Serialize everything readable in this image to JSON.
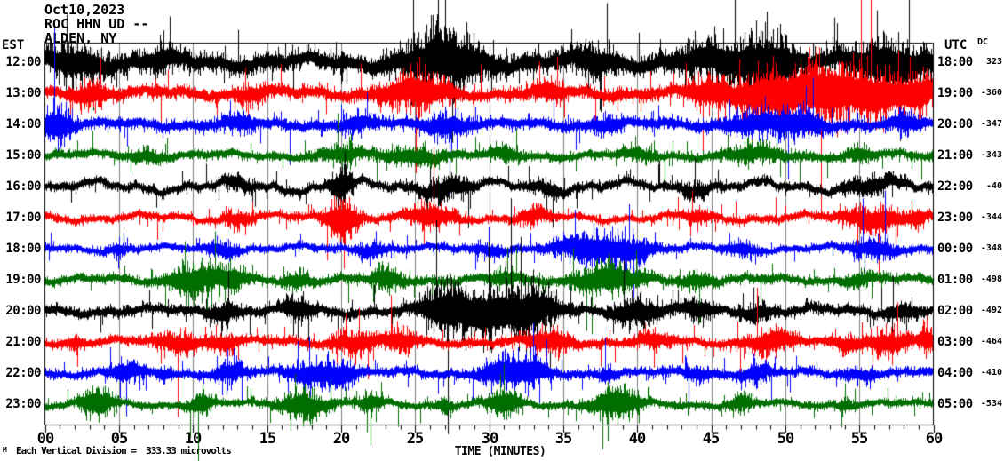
{
  "header": {
    "date": "Oct10,2023",
    "station": "ROC HHN UD --",
    "location": "ALDEN, NY"
  },
  "misc": {
    "watermark": "M"
  },
  "colors": {
    "background": "#ffffff",
    "text": "#000000",
    "grid": "#7f7f7f",
    "border": "#000000",
    "trace_black": "#000000",
    "trace_red": "#ff0000",
    "trace_blue": "#0000ff",
    "trace_green": "#006e00"
  },
  "chart_data": {
    "type": "line",
    "subtype": "helicorder-seismogram",
    "title": "Oct10,2023 ROC HHN UD --",
    "left_axis_label": "EST",
    "right_axis_label": "UTC",
    "dc_column_label": "DC",
    "x_axis_title": "TIME (MINUTES)",
    "x_ticks": [
      "00",
      "05",
      "10",
      "15",
      "20",
      "25",
      "30",
      "35",
      "40",
      "45",
      "50",
      "55",
      "60"
    ],
    "x_range_minutes": [
      0,
      60
    ],
    "major_tick_minutes": 5,
    "minor_tick_minutes": 1,
    "grid": true,
    "scale_note": "Each Vertical Division =  333.33 microvolts",
    "vertical_division_microvolts": 333.33,
    "rows": [
      {
        "est": "12:00",
        "utc": "18:00",
        "dc": "323",
        "color": "#000000",
        "base_amp": 16,
        "wander": 7,
        "bursts": [
          [
            2,
            2,
            20
          ],
          [
            8,
            1,
            12
          ],
          [
            27,
            2.5,
            45
          ],
          [
            37,
            1.5,
            18
          ],
          [
            46,
            3,
            25
          ],
          [
            49,
            1.5,
            40
          ],
          [
            57,
            2.5,
            35
          ]
        ]
      },
      {
        "est": "13:00",
        "utc": "19:00",
        "dc": "-360",
        "color": "#ff0000",
        "base_amp": 11,
        "wander": 5,
        "bursts": [
          [
            3,
            1,
            15
          ],
          [
            14,
            1,
            10
          ],
          [
            25,
            2,
            28
          ],
          [
            34,
            1,
            14
          ],
          [
            45,
            1.5,
            22
          ],
          [
            49,
            2,
            40
          ],
          [
            52.5,
            2,
            45
          ],
          [
            56,
            2,
            40
          ],
          [
            59,
            1,
            28
          ]
        ]
      },
      {
        "est": "14:00",
        "utc": "20:00",
        "dc": "-347",
        "color": "#0000ff",
        "base_amp": 10,
        "wander": 4,
        "bursts": [
          [
            0.7,
            1,
            28
          ],
          [
            13,
            1,
            10
          ],
          [
            21,
            1,
            10
          ],
          [
            27,
            1.5,
            16
          ],
          [
            38,
            1,
            10
          ],
          [
            48,
            2,
            16
          ],
          [
            51,
            1.5,
            18
          ],
          [
            58,
            1,
            12
          ]
        ]
      },
      {
        "est": "15:00",
        "utc": "21:00",
        "dc": "-343",
        "color": "#006e00",
        "base_amp": 8,
        "wander": 4,
        "bursts": [
          [
            7,
            1,
            8
          ],
          [
            20,
            1.5,
            10
          ],
          [
            25,
            2,
            12
          ],
          [
            31,
            1,
            10
          ],
          [
            40,
            1,
            8
          ],
          [
            48,
            2,
            12
          ],
          [
            55,
            1,
            8
          ]
        ]
      },
      {
        "est": "16:00",
        "utc": "22:00",
        "dc": "-40",
        "color": "#000000",
        "base_amp": 8,
        "wander": 8,
        "bursts": [
          [
            13,
            1,
            10
          ],
          [
            20,
            0.7,
            30
          ],
          [
            27,
            1.5,
            18
          ],
          [
            34,
            1,
            10
          ],
          [
            44,
            1,
            10
          ],
          [
            56,
            2,
            12
          ]
        ]
      },
      {
        "est": "17:00",
        "utc": "23:00",
        "dc": "-344",
        "color": "#ff0000",
        "base_amp": 7,
        "wander": 5,
        "bursts": [
          [
            13,
            1,
            10
          ],
          [
            20,
            1,
            35
          ],
          [
            26,
            1.5,
            18
          ],
          [
            33,
            1,
            12
          ],
          [
            44,
            1,
            8
          ],
          [
            56,
            2,
            20
          ],
          [
            59,
            0.5,
            12
          ]
        ]
      },
      {
        "est": "18:00",
        "utc": "00:00",
        "dc": "-348",
        "color": "#0000ff",
        "base_amp": 7,
        "wander": 4,
        "bursts": [
          [
            5,
            0.5,
            8
          ],
          [
            12,
            1,
            12
          ],
          [
            22,
            1,
            10
          ],
          [
            30,
            1,
            8
          ],
          [
            36.5,
            2,
            25
          ],
          [
            39.5,
            1.5,
            20
          ],
          [
            47,
            1,
            8
          ],
          [
            56,
            1.5,
            14
          ]
        ]
      },
      {
        "est": "19:00",
        "utc": "01:00",
        "dc": "-498",
        "color": "#006e00",
        "base_amp": 8,
        "wander": 4,
        "bursts": [
          [
            10,
            1.5,
            25
          ],
          [
            12.5,
            1,
            20
          ],
          [
            17,
            0.7,
            12
          ],
          [
            23,
            1,
            16
          ],
          [
            31,
            1,
            10
          ],
          [
            38,
            2,
            25
          ],
          [
            44,
            1,
            10
          ],
          [
            55,
            1,
            8
          ]
        ]
      },
      {
        "est": "20:00",
        "utc": "02:00",
        "dc": "-492",
        "color": "#000000",
        "base_amp": 9,
        "wander": 5,
        "bursts": [
          [
            12,
            1,
            15
          ],
          [
            17,
            1,
            16
          ],
          [
            27,
            1.5,
            25
          ],
          [
            30,
            3,
            38
          ],
          [
            33,
            1.5,
            25
          ],
          [
            40,
            1.5,
            20
          ],
          [
            44,
            1,
            15
          ],
          [
            48,
            1,
            12
          ],
          [
            58,
            1,
            10
          ]
        ]
      },
      {
        "est": "21:00",
        "utc": "03:00",
        "dc": "-464",
        "color": "#ff0000",
        "base_amp": 8,
        "wander": 4,
        "bursts": [
          [
            2,
            0.5,
            8
          ],
          [
            9,
            1.5,
            15
          ],
          [
            12,
            1,
            12
          ],
          [
            21,
            1.5,
            15
          ],
          [
            24,
            1,
            16
          ],
          [
            34,
            1.5,
            18
          ],
          [
            41,
            1,
            10
          ],
          [
            49,
            1.5,
            18
          ],
          [
            54,
            1,
            10
          ],
          [
            57,
            1.5,
            16
          ],
          [
            59.5,
            0.5,
            20
          ]
        ]
      },
      {
        "est": "22:00",
        "utc": "04:00",
        "dc": "-410",
        "color": "#0000ff",
        "base_amp": 8,
        "wander": 4,
        "bursts": [
          [
            5.5,
            1,
            16
          ],
          [
            8,
            0.5,
            10
          ],
          [
            12.5,
            1,
            15
          ],
          [
            18,
            1.5,
            18
          ],
          [
            20,
            1,
            20
          ],
          [
            31,
            1.5,
            25
          ],
          [
            33,
            1,
            20
          ],
          [
            38,
            0.5,
            10
          ],
          [
            44,
            1,
            8
          ],
          [
            48,
            1,
            12
          ],
          [
            55,
            1,
            8
          ]
        ]
      },
      {
        "est": "23:00",
        "utc": "05:00",
        "dc": "-534",
        "color": "#006e00",
        "base_amp": 7,
        "wander": 4,
        "bursts": [
          [
            3.5,
            1,
            25
          ],
          [
            10.5,
            0.7,
            20
          ],
          [
            17.5,
            1.5,
            22
          ],
          [
            22,
            0.7,
            14
          ],
          [
            27,
            0.5,
            10
          ],
          [
            31,
            1,
            20
          ],
          [
            38.5,
            1.5,
            28
          ],
          [
            47,
            0.7,
            14
          ],
          [
            54,
            0.5,
            8
          ]
        ]
      }
    ]
  }
}
